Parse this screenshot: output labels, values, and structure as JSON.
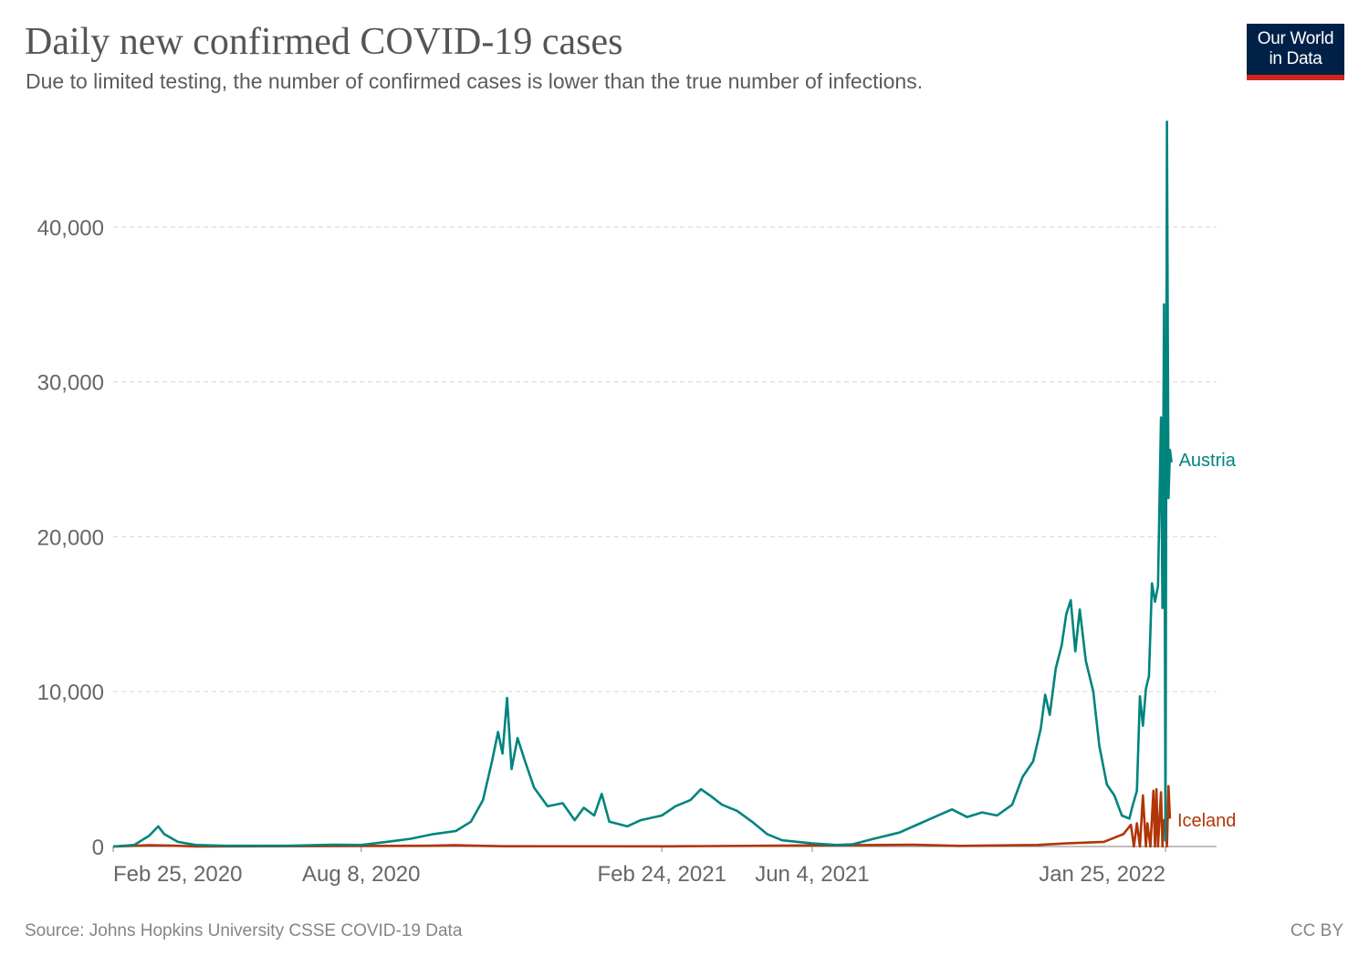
{
  "header": {
    "title": "Daily new confirmed COVID-19 cases",
    "subtitle": "Due to limited testing, the number of confirmed cases is lower than the true number of infections."
  },
  "logo": {
    "line1": "Our World",
    "line2": "in Data",
    "bg_color": "#002147",
    "accent_color": "#ce261e"
  },
  "footer": {
    "source": "Source: Johns Hopkins University CSSE COVID-19 Data",
    "license": "CC BY"
  },
  "chart_data": {
    "type": "line",
    "title": "Daily new confirmed COVID-19 cases",
    "subtitle": "Due to limited testing, the number of confirmed cases is lower than the true number of infections.",
    "xlabel": "",
    "ylabel": "",
    "x_type": "date",
    "xlim": [
      "2020-02-25",
      "2022-02-28"
    ],
    "ylim": [
      0,
      47000
    ],
    "y_ticks": [
      0,
      10000,
      20000,
      30000,
      40000
    ],
    "y_tick_labels": [
      "0",
      "10,000",
      "20,000",
      "30,000",
      "40,000"
    ],
    "x_ticks": [
      "2020-02-25",
      "2020-08-08",
      "2021-02-24",
      "2021-06-04",
      "2022-01-25"
    ],
    "x_tick_labels": [
      "Feb 25, 2020",
      "Aug 8, 2020",
      "Feb 24, 2021",
      "Jun 4, 2021",
      "Jan 25, 2022"
    ],
    "grid": "horizontal dashed",
    "legend": "labels at line ends (right)",
    "series": [
      {
        "name": "Austria",
        "color": "#00847e",
        "points": [
          [
            "2020-02-25",
            0
          ],
          [
            "2020-03-10",
            100
          ],
          [
            "2020-03-20",
            700
          ],
          [
            "2020-03-26",
            1300
          ],
          [
            "2020-03-30",
            800
          ],
          [
            "2020-04-08",
            300
          ],
          [
            "2020-04-20",
            100
          ],
          [
            "2020-05-10",
            50
          ],
          [
            "2020-06-20",
            50
          ],
          [
            "2020-07-20",
            120
          ],
          [
            "2020-08-08",
            100
          ],
          [
            "2020-08-25",
            300
          ],
          [
            "2020-09-10",
            500
          ],
          [
            "2020-09-25",
            800
          ],
          [
            "2020-10-10",
            1000
          ],
          [
            "2020-10-20",
            1600
          ],
          [
            "2020-10-28",
            3000
          ],
          [
            "2020-11-03",
            5500
          ],
          [
            "2020-11-07",
            7400
          ],
          [
            "2020-11-10",
            6000
          ],
          [
            "2020-11-13",
            9600
          ],
          [
            "2020-11-16",
            5000
          ],
          [
            "2020-11-20",
            7000
          ],
          [
            "2020-11-25",
            5500
          ],
          [
            "2020-12-01",
            3800
          ],
          [
            "2020-12-10",
            2600
          ],
          [
            "2020-12-20",
            2800
          ],
          [
            "2020-12-28",
            1700
          ],
          [
            "2021-01-03",
            2500
          ],
          [
            "2021-01-10",
            2000
          ],
          [
            "2021-01-15",
            3400
          ],
          [
            "2021-01-20",
            1600
          ],
          [
            "2021-02-01",
            1300
          ],
          [
            "2021-02-10",
            1700
          ],
          [
            "2021-02-24",
            2000
          ],
          [
            "2021-03-05",
            2600
          ],
          [
            "2021-03-15",
            3000
          ],
          [
            "2021-03-22",
            3700
          ],
          [
            "2021-03-28",
            3300
          ],
          [
            "2021-04-05",
            2700
          ],
          [
            "2021-04-15",
            2300
          ],
          [
            "2021-04-25",
            1600
          ],
          [
            "2021-05-05",
            800
          ],
          [
            "2021-05-15",
            400
          ],
          [
            "2021-06-04",
            200
          ],
          [
            "2021-06-20",
            100
          ],
          [
            "2021-07-01",
            150
          ],
          [
            "2021-07-15",
            500
          ],
          [
            "2021-08-01",
            900
          ],
          [
            "2021-08-15",
            1500
          ],
          [
            "2021-08-29",
            2100
          ],
          [
            "2021-09-05",
            2400
          ],
          [
            "2021-09-15",
            1900
          ],
          [
            "2021-09-25",
            2200
          ],
          [
            "2021-10-05",
            2000
          ],
          [
            "2021-10-15",
            2700
          ],
          [
            "2021-10-22",
            4500
          ],
          [
            "2021-10-29",
            5500
          ],
          [
            "2021-11-03",
            7600
          ],
          [
            "2021-11-06",
            9800
          ],
          [
            "2021-11-09",
            8500
          ],
          [
            "2021-11-13",
            11500
          ],
          [
            "2021-11-17",
            13000
          ],
          [
            "2021-11-20",
            15000
          ],
          [
            "2021-11-23",
            15900
          ],
          [
            "2021-11-26",
            12600
          ],
          [
            "2021-11-29",
            15300
          ],
          [
            "2021-12-03",
            12000
          ],
          [
            "2021-12-08",
            10000
          ],
          [
            "2021-12-12",
            6500
          ],
          [
            "2021-12-17",
            4000
          ],
          [
            "2021-12-22",
            3300
          ],
          [
            "2021-12-27",
            2000
          ],
          [
            "2022-01-01",
            1800
          ],
          [
            "2022-01-03",
            2600
          ],
          [
            "2022-01-06",
            3600
          ],
          [
            "2022-01-08",
            9700
          ],
          [
            "2022-01-10",
            7800
          ],
          [
            "2022-01-12",
            10200
          ],
          [
            "2022-01-14",
            11000
          ],
          [
            "2022-01-16",
            17000
          ],
          [
            "2022-01-18",
            15800
          ],
          [
            "2022-01-20",
            16800
          ],
          [
            "2022-01-22",
            27700
          ],
          [
            "2022-01-23",
            15400
          ],
          [
            "2022-01-24",
            35000
          ],
          [
            "2022-01-25",
            400
          ],
          [
            "2022-01-26",
            46800
          ],
          [
            "2022-01-27",
            22500
          ],
          [
            "2022-01-28",
            25600
          ],
          [
            "2022-01-29",
            24800
          ]
        ]
      },
      {
        "name": "Iceland",
        "color": "#b13507",
        "points": [
          [
            "2020-02-25",
            0
          ],
          [
            "2020-03-20",
            80
          ],
          [
            "2020-04-05",
            60
          ],
          [
            "2020-04-20",
            5
          ],
          [
            "2020-09-20",
            50
          ],
          [
            "2020-10-10",
            80
          ],
          [
            "2020-11-10",
            20
          ],
          [
            "2021-03-01",
            10
          ],
          [
            "2021-07-20",
            100
          ],
          [
            "2021-08-10",
            120
          ],
          [
            "2021-09-10",
            40
          ],
          [
            "2021-11-01",
            100
          ],
          [
            "2021-11-20",
            200
          ],
          [
            "2021-12-15",
            300
          ],
          [
            "2021-12-28",
            800
          ],
          [
            "2022-01-02",
            1400
          ],
          [
            "2022-01-04",
            0
          ],
          [
            "2022-01-06",
            1500
          ],
          [
            "2022-01-08",
            0
          ],
          [
            "2022-01-10",
            3300
          ],
          [
            "2022-01-12",
            0
          ],
          [
            "2022-01-13",
            1500
          ],
          [
            "2022-01-15",
            0
          ],
          [
            "2022-01-17",
            3600
          ],
          [
            "2022-01-18",
            0
          ],
          [
            "2022-01-19",
            3700
          ],
          [
            "2022-01-20",
            0
          ],
          [
            "2022-01-22",
            3500
          ],
          [
            "2022-01-23",
            0
          ],
          [
            "2022-01-24",
            1700
          ],
          [
            "2022-01-25",
            1400
          ],
          [
            "2022-01-26",
            0
          ],
          [
            "2022-01-27",
            3900
          ],
          [
            "2022-01-28",
            1800
          ]
        ]
      }
    ]
  }
}
